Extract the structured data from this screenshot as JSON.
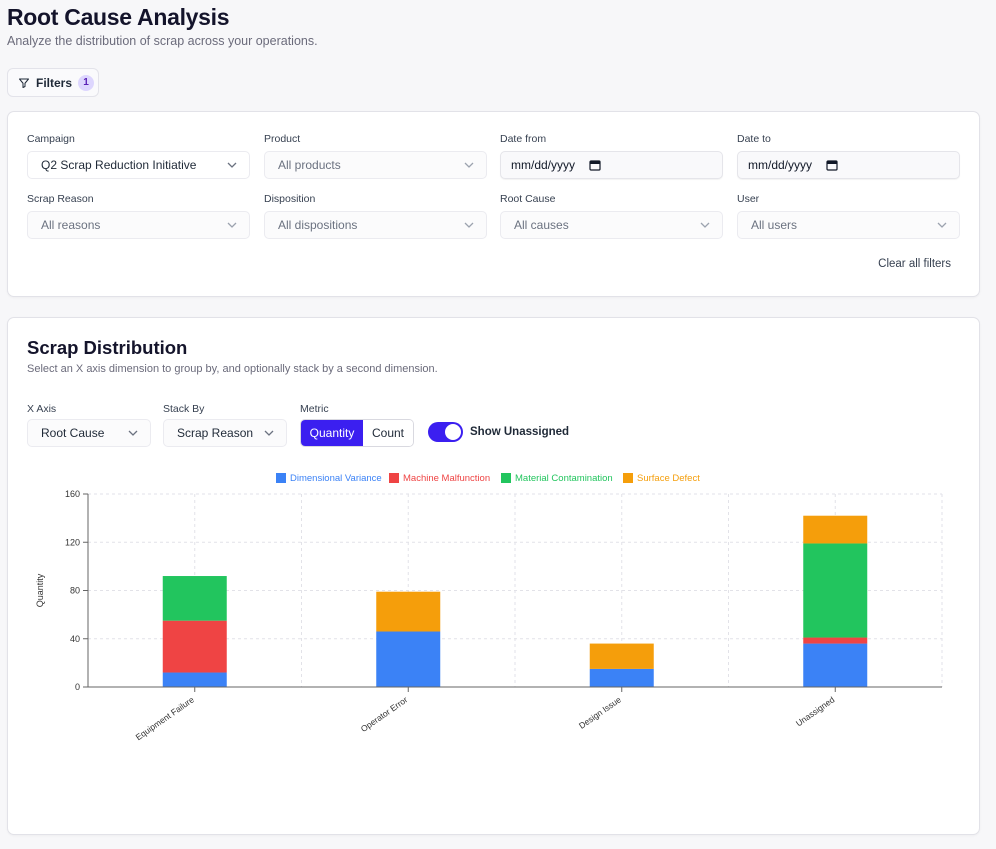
{
  "page": {
    "title": "Root Cause Analysis",
    "subtitle": "Analyze the distribution of scrap across your operations."
  },
  "filters_button": {
    "label": "Filters",
    "count": "1"
  },
  "filters": {
    "campaign": {
      "label": "Campaign",
      "value": "Q2 Scrap Reduction Initiative"
    },
    "product": {
      "label": "Product",
      "value": "All products"
    },
    "date_from": {
      "label": "Date from",
      "value": "mm/dd/yyyy"
    },
    "date_to": {
      "label": "Date to",
      "value": "mm/dd/yyyy"
    },
    "scrap_reason": {
      "label": "Scrap Reason",
      "value": "All reasons"
    },
    "disposition": {
      "label": "Disposition",
      "value": "All dispositions"
    },
    "root_cause": {
      "label": "Root Cause",
      "value": "All causes"
    },
    "user": {
      "label": "User",
      "value": "All users"
    },
    "clear_label": "Clear all filters"
  },
  "distribution": {
    "title": "Scrap Distribution",
    "subtitle": "Select an X axis dimension to group by, and optionally stack by a second dimension.",
    "x_axis": {
      "label": "X Axis",
      "value": "Root Cause"
    },
    "stack_by": {
      "label": "Stack By",
      "value": "Scrap Reason"
    },
    "metric": {
      "label": "Metric",
      "options": [
        "Quantity",
        "Count"
      ],
      "selected": "Quantity"
    },
    "show_unassigned": {
      "label": "Show Unassigned",
      "on": true
    }
  },
  "colors": {
    "accent": "#3b1ff0",
    "dimensional_variance": "#3b82f6",
    "machine_malfunction": "#ef4444",
    "material_contamination": "#22c55e",
    "surface_defect": "#f59e0b"
  },
  "chart_data": {
    "type": "bar",
    "stacked": true,
    "categories": [
      "Equipment Failure",
      "Operator Error",
      "Design Issue",
      "Unassigned"
    ],
    "ylabel": "Quantity",
    "ylim": [
      0,
      160
    ],
    "yticks": [
      0,
      40,
      80,
      120,
      160
    ],
    "grid": true,
    "legend_position": "top",
    "series": [
      {
        "name": "Dimensional Variance",
        "color": "#3b82f6",
        "values": [
          12,
          46,
          15,
          36
        ]
      },
      {
        "name": "Machine Malfunction",
        "color": "#ef4444",
        "values": [
          43,
          0,
          0,
          5
        ]
      },
      {
        "name": "Material Contamination",
        "color": "#22c55e",
        "values": [
          37,
          0,
          0,
          78
        ]
      },
      {
        "name": "Surface Defect",
        "color": "#f59e0b",
        "values": [
          0,
          33,
          21,
          23
        ]
      }
    ]
  }
}
